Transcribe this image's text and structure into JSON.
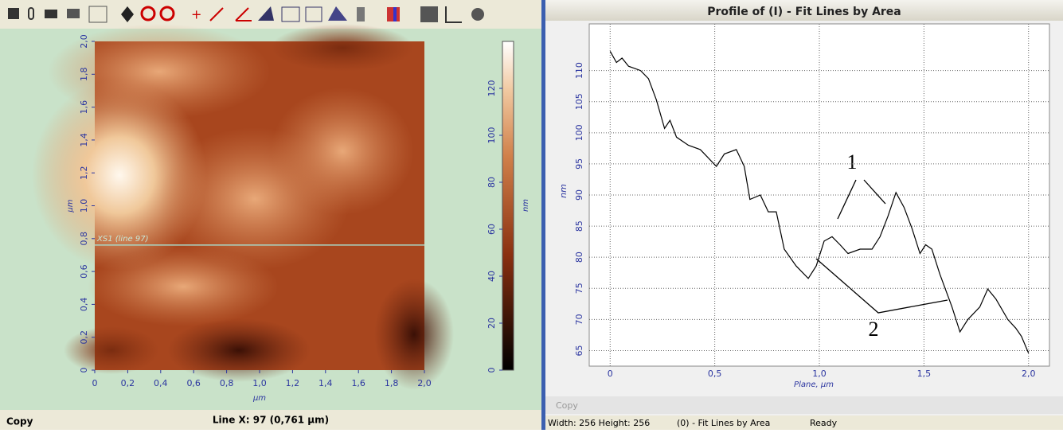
{
  "image_view": {
    "xlim": [
      0,
      2
    ],
    "ylim": [
      0,
      2
    ],
    "xticks": [
      0,
      {
        "value": 0.2,
        "label": "0,2"
      },
      {
        "value": 0.4,
        "label": "0,4"
      },
      {
        "value": 0.6,
        "label": "0,6"
      },
      {
        "value": 0.8,
        "label": "0,8"
      },
      {
        "value": 1.0,
        "label": "1,0"
      },
      {
        "value": 1.2,
        "label": "1,2"
      },
      {
        "value": 1.4,
        "label": "1,4"
      },
      {
        "value": 1.6,
        "label": "1,6"
      },
      {
        "value": 1.8,
        "label": "1,8"
      },
      {
        "value": 2.0,
        "label": "2,0"
      }
    ],
    "yticks": [
      0,
      {
        "value": 0.2,
        "label": "0,2"
      },
      {
        "value": 0.4,
        "label": "0,4"
      },
      {
        "value": 0.6,
        "label": "0,6"
      },
      {
        "value": 0.8,
        "label": "0,8"
      },
      {
        "value": 1.0,
        "label": "1,0"
      },
      {
        "value": 1.2,
        "label": "1,2"
      },
      {
        "value": 1.4,
        "label": "1,4"
      },
      {
        "value": 1.6,
        "label": "1,6"
      },
      {
        "value": 1.8,
        "label": "1,8"
      },
      {
        "value": 2.0,
        "label": "2,0"
      }
    ],
    "xlabel": "µm",
    "ylabel": "µm",
    "line_label": "XS1 (line 97)",
    "line_y": 0.761
  },
  "colorbar": {
    "lim": [
      0,
      140
    ],
    "ticks": [
      0,
      20,
      40,
      60,
      80,
      100,
      120
    ],
    "label": "nm"
  },
  "left_status": {
    "copy": "Copy",
    "line": "Line X: 97 (0,761 µm)"
  },
  "chart_data": {
    "type": "line",
    "title": "Profile of (I) - Fit Lines by Area",
    "x": [
      0,
      0.03,
      0.057,
      0.088,
      0.145,
      0.183,
      0.221,
      0.26,
      0.286,
      0.317,
      0.374,
      0.431,
      0.508,
      0.546,
      0.603,
      0.641,
      0.668,
      0.718,
      0.756,
      0.794,
      0.832,
      0.889,
      0.947,
      0.985,
      1.023,
      1.061,
      1.099,
      1.137,
      1.195,
      1.252,
      1.29,
      1.328,
      1.366,
      1.405,
      1.443,
      1.481,
      1.508,
      1.538,
      1.576,
      1.634,
      1.672,
      1.71,
      1.767,
      1.805,
      1.844,
      1.901,
      1.939,
      1.966,
      2.0
    ],
    "values": [
      113.1,
      111.3,
      112,
      110.7,
      110,
      108.7,
      105.3,
      100.7,
      102,
      99.3,
      98,
      97.3,
      94.6,
      96.6,
      97.3,
      94.6,
      89.3,
      90,
      87.3,
      87.3,
      81.3,
      78.6,
      76.6,
      78.6,
      82.6,
      83.3,
      82,
      80.6,
      81.3,
      81.3,
      83.3,
      86.6,
      90.4,
      88,
      84.6,
      80.6,
      82,
      81.3,
      77.3,
      72,
      68,
      70,
      72,
      74.9,
      73.3,
      70,
      68.6,
      67.3,
      64.6
    ],
    "color": "#000000",
    "xlim": [
      -0.1,
      2.1
    ],
    "ylim": [
      62.5,
      117.5
    ],
    "xticks": [
      0,
      {
        "value": 0.5,
        "label": "0,5"
      },
      {
        "value": 1.0,
        "label": "1,0"
      },
      {
        "value": 1.5,
        "label": "1,5"
      },
      {
        "value": 2.0,
        "label": "2,0"
      }
    ],
    "yticks": [
      65,
      70,
      75,
      80,
      85,
      90,
      95,
      100,
      105,
      110
    ],
    "xlabel": "Plane, µm",
    "ylabel": "nm",
    "grid": true,
    "annotations": [
      "1",
      "2"
    ]
  },
  "right_status": {
    "copy": "Copy",
    "size": "Width: 256 Height: 256",
    "name": "(0) - Fit Lines by Area",
    "state": "Ready"
  }
}
